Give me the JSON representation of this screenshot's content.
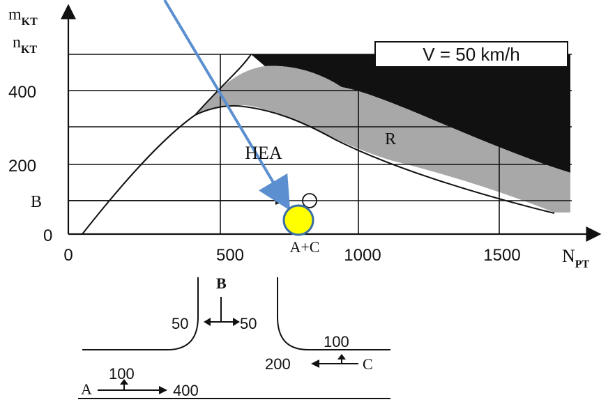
{
  "chart": {
    "y_axis_label_main": "m",
    "y_axis_label_main_sub": "KT",
    "y_axis_label_second": "n",
    "y_axis_label_second_sub": "KT",
    "x_axis_label_main": "N",
    "x_axis_label_sub": "PT",
    "speed_box_label": "V = 50 km/h",
    "region_r_label": "R",
    "region_hea_label": "HEA",
    "x_ticks": [
      "0",
      "500",
      "1000",
      "1500"
    ],
    "y_ticks": [
      "400",
      "200",
      "B",
      "0"
    ],
    "operating_point_label": "A+C"
  },
  "intersection": {
    "approach_b_label": "B",
    "approach_b_left_value": "50",
    "approach_b_right_value": "50",
    "approach_c_top_value": "100",
    "approach_c_left_value": "200",
    "approach_c_label": "C",
    "approach_a_label": "A",
    "approach_a_top_value": "100",
    "approach_a_right_value": "400"
  },
  "colors": {
    "region_r": "#a8a8a8",
    "region_black": "#111111",
    "annotation_arrow": "#5b8fd0",
    "marker_fill": "#ffff00",
    "marker_stroke": "#3a6ea5"
  },
  "icons": {
    "marker": "yellow-circle-marker",
    "annotation": "blue-pointer-arrow"
  }
}
